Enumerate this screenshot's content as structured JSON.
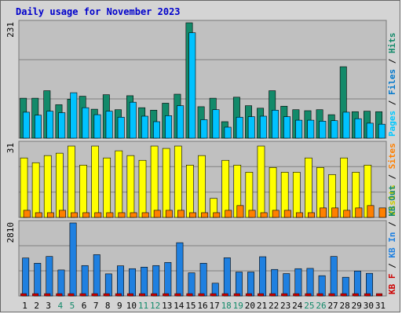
{
  "chart_data": [
    {
      "type": "bar",
      "title": "Daily usage for November 2023",
      "panel": "pages-files-hits",
      "y_top_label": "231",
      "ylim": [
        0,
        231
      ],
      "series": [
        {
          "name": "Hits",
          "color": "#138a6a",
          "values": [
            80,
            80,
            95,
            67,
            78,
            84,
            58,
            87,
            57,
            85,
            61,
            56,
            70,
            88,
            231,
            63,
            80,
            33,
            82,
            65,
            60,
            95,
            64,
            57,
            55,
            57,
            47,
            143,
            53,
            54,
            53
          ]
        },
        {
          "name": "Files",
          "color": "#00c2ff",
          "values": [
            52,
            46,
            54,
            51,
            91,
            61,
            47,
            54,
            42,
            72,
            44,
            33,
            45,
            65,
            211,
            37,
            57,
            22,
            42,
            43,
            44,
            56,
            43,
            36,
            36,
            34,
            35,
            52,
            39,
            30,
            28
          ]
        },
        {
          "name": "Pages",
          "color": "#30e8ff",
          "values": [
            0,
            0,
            0,
            0,
            0,
            0,
            0,
            0,
            0,
            0,
            0,
            0,
            0,
            0,
            0,
            0,
            0,
            0,
            0,
            0,
            0,
            0,
            0,
            0,
            0,
            0,
            0,
            0,
            0,
            0,
            0
          ]
        }
      ],
      "right_legend": [
        {
          "text": "Pages",
          "color": "#00c8ff"
        },
        {
          "text": " / ",
          "color": "#000000"
        },
        {
          "text": "Files",
          "color": "#0077cc"
        },
        {
          "text": " / ",
          "color": "#000000"
        },
        {
          "text": "Hits",
          "color": "#138a6a"
        }
      ]
    },
    {
      "type": "bar",
      "panel": "visits-sites",
      "y_top_label": "31",
      "ylim": [
        0,
        31
      ],
      "series": [
        {
          "name": "Visits",
          "color": "#ffff00",
          "values": [
            25,
            23,
            26,
            27,
            30,
            22,
            30,
            25,
            28,
            26,
            24,
            30,
            29,
            30,
            22,
            26,
            8,
            24,
            22,
            19,
            30,
            21,
            19,
            19,
            25,
            21,
            18,
            25,
            19,
            22,
            0
          ]
        },
        {
          "name": "Sites",
          "color": "#ff8000",
          "values": [
            3,
            2,
            2,
            3,
            2,
            2,
            2,
            2,
            2,
            2,
            2,
            3,
            3,
            3,
            2,
            2,
            2,
            3,
            5,
            3,
            2,
            3,
            3,
            2,
            2,
            4,
            4,
            3,
            4,
            5,
            4
          ]
        }
      ],
      "right_legend": [
        {
          "text": "Visits",
          "color": "#cccc00"
        },
        {
          "text": " / ",
          "color": "#000000"
        },
        {
          "text": "Sites",
          "color": "#ff8000"
        }
      ]
    },
    {
      "type": "bar",
      "panel": "kbin-kbout",
      "y_top_label": "2810",
      "ylim": [
        0,
        2810
      ],
      "series": [
        {
          "name": "KB In",
          "color": "#1f80e0",
          "values": [
            1460,
            1260,
            1520,
            1000,
            2810,
            1170,
            1590,
            850,
            1160,
            1050,
            1110,
            1170,
            1290,
            2050,
            890,
            1260,
            490,
            1470,
            920,
            920,
            1510,
            1020,
            860,
            1050,
            1060,
            780,
            1520,
            720,
            960,
            870,
            0
          ]
        },
        {
          "name": "KB F",
          "color": "#cc0000",
          "values": [
            0,
            0,
            0,
            0,
            0,
            0,
            0,
            0,
            0,
            0,
            0,
            0,
            0,
            0,
            0,
            0,
            0,
            0,
            0,
            0,
            0,
            0,
            0,
            0,
            0,
            0,
            0,
            0,
            0,
            0,
            0
          ]
        }
      ],
      "right_legend": [
        {
          "text": "KB F",
          "color": "#cc0000"
        },
        {
          "text": " / ",
          "color": "#000000"
        },
        {
          "text": "KB In",
          "color": "#1f80e0"
        },
        {
          "text": " / ",
          "color": "#000000"
        },
        {
          "text": "KB Out",
          "color": "#138a6a"
        }
      ]
    }
  ],
  "x_days": [
    {
      "label": "1",
      "weekend": false
    },
    {
      "label": "2",
      "weekend": false
    },
    {
      "label": "3",
      "weekend": false
    },
    {
      "label": "4",
      "weekend": true
    },
    {
      "label": "5",
      "weekend": true
    },
    {
      "label": "6",
      "weekend": false
    },
    {
      "label": "7",
      "weekend": false
    },
    {
      "label": "8",
      "weekend": false
    },
    {
      "label": "9",
      "weekend": false
    },
    {
      "label": "10",
      "weekend": false
    },
    {
      "label": "11",
      "weekend": true
    },
    {
      "label": "12",
      "weekend": true
    },
    {
      "label": "13",
      "weekend": false
    },
    {
      "label": "14",
      "weekend": false
    },
    {
      "label": "15",
      "weekend": false
    },
    {
      "label": "16",
      "weekend": false
    },
    {
      "label": "17",
      "weekend": false
    },
    {
      "label": "18",
      "weekend": true
    },
    {
      "label": "19",
      "weekend": true
    },
    {
      "label": "20",
      "weekend": false
    },
    {
      "label": "21",
      "weekend": false
    },
    {
      "label": "22",
      "weekend": false
    },
    {
      "label": "23",
      "weekend": false
    },
    {
      "label": "24",
      "weekend": false
    },
    {
      "label": "25",
      "weekend": true
    },
    {
      "label": "26",
      "weekend": true
    },
    {
      "label": "27",
      "weekend": false
    },
    {
      "label": "28",
      "weekend": false
    },
    {
      "label": "29",
      "weekend": false
    },
    {
      "label": "30",
      "weekend": false
    },
    {
      "label": "31",
      "weekend": false
    }
  ],
  "colors": {
    "panel_bg": "#c0c0c0",
    "frame_bg": "#d4d4d4",
    "gridline": "#808080",
    "title": "#0000cc",
    "weekday_label": "#000000",
    "weekend_label": "#138a6a"
  }
}
